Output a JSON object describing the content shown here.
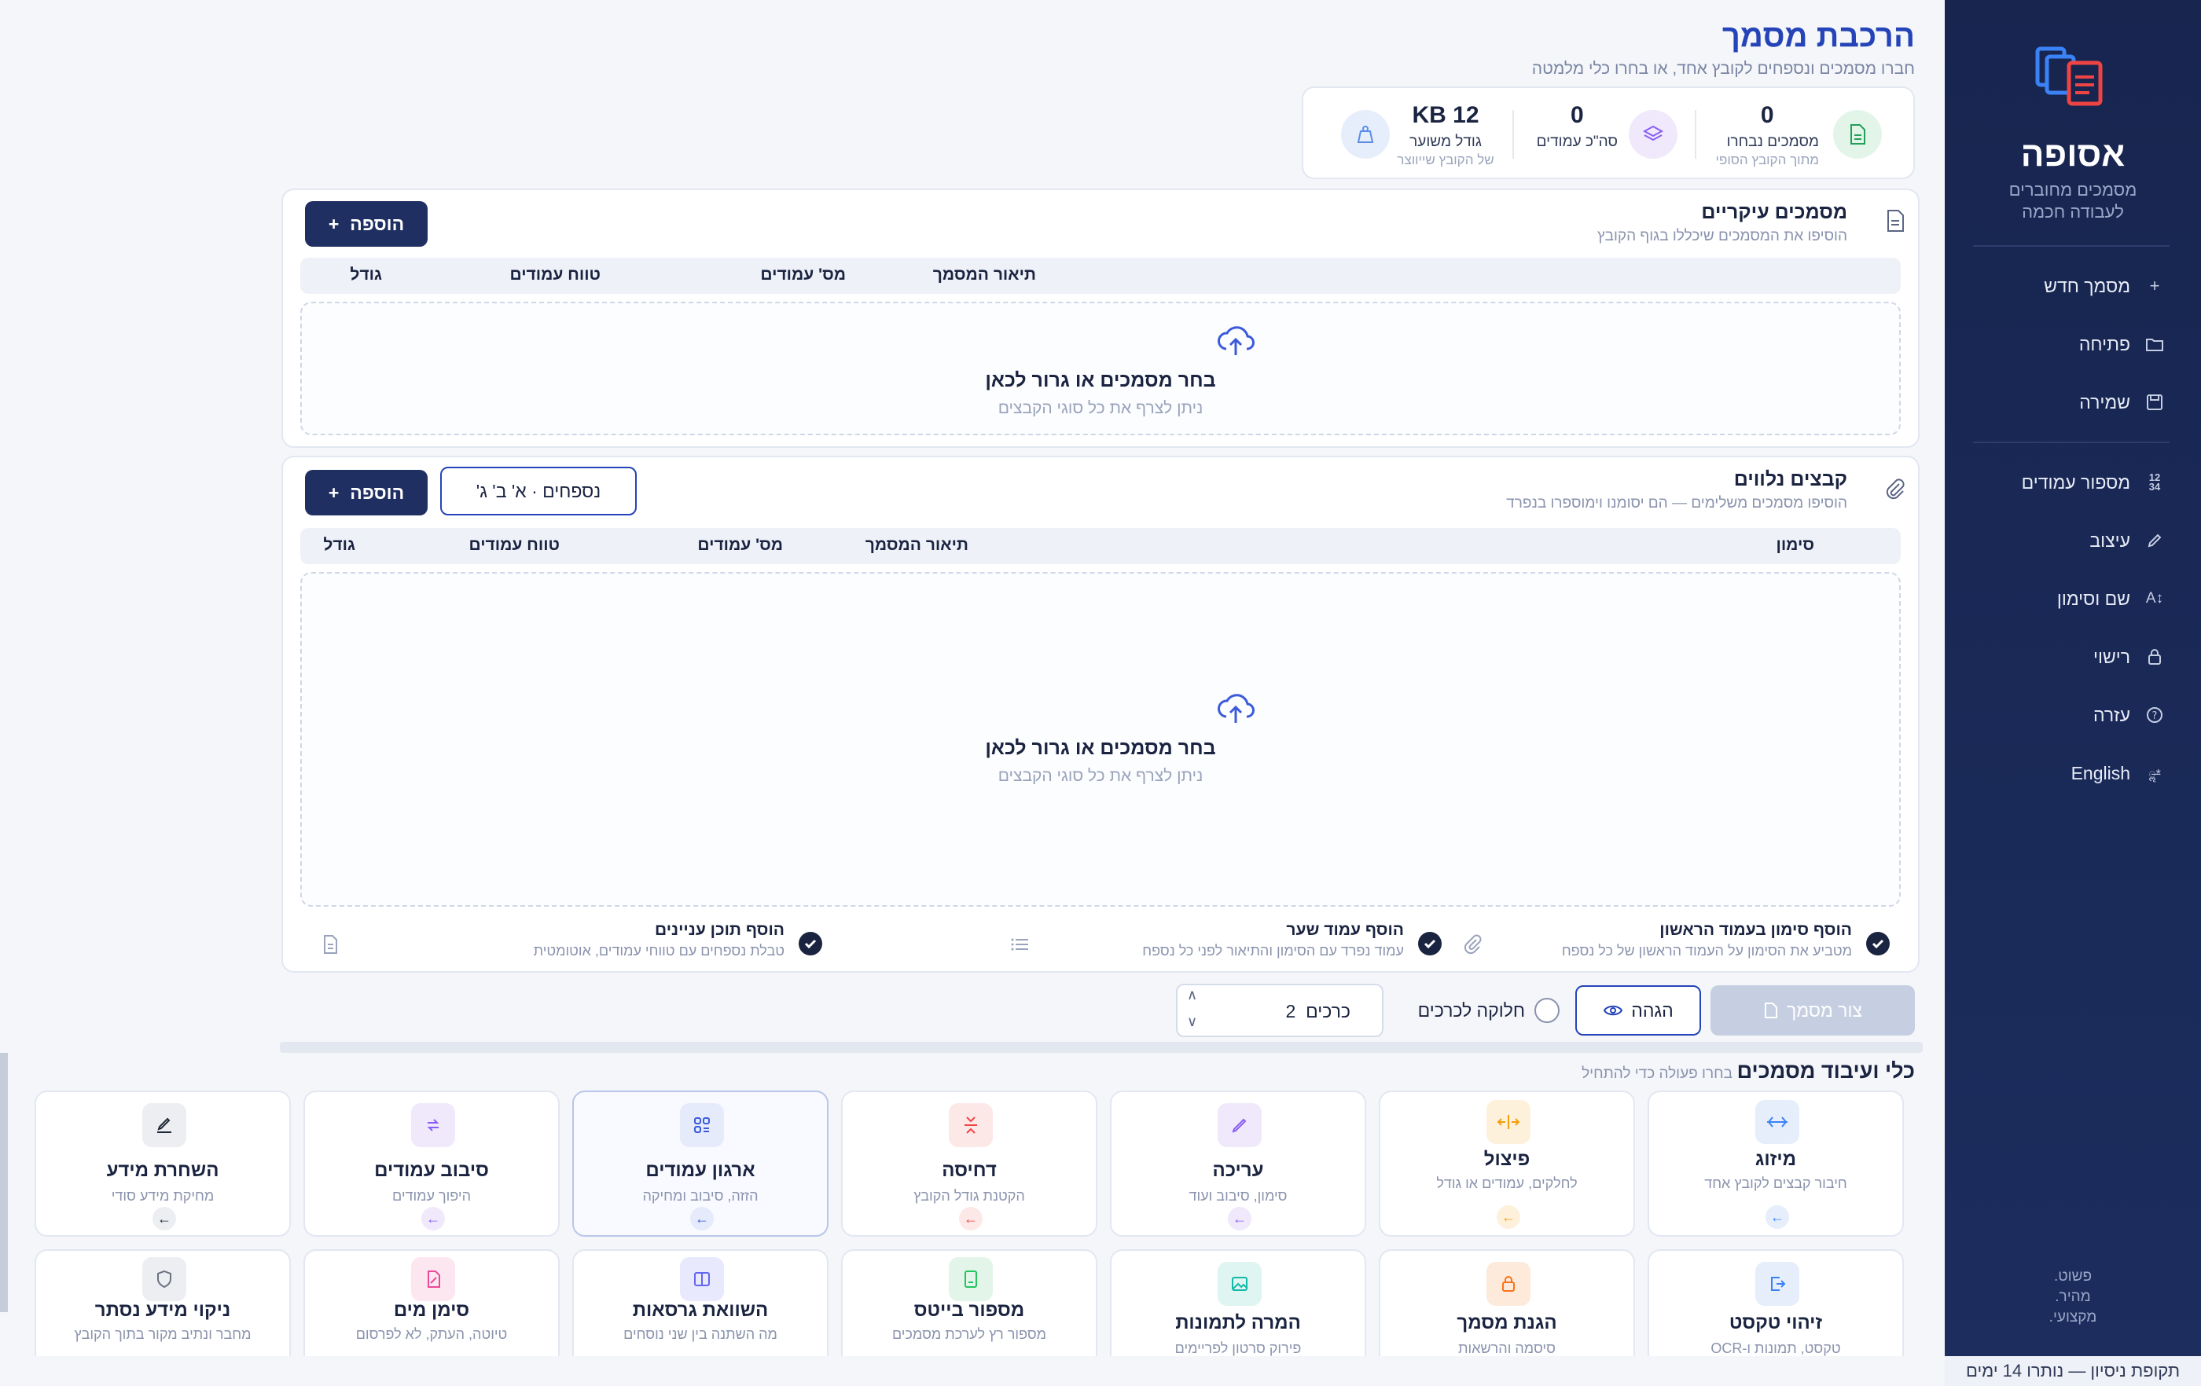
{
  "sidebar": {
    "brand": "אסופה",
    "tagline_1": "מסמכים מחוברים",
    "tagline_2": "לעבודה חכמה",
    "menu": [
      {
        "label": "מסמך חדש",
        "icon": "plus-icon"
      },
      {
        "label": "פתיחה",
        "icon": "folder-icon"
      },
      {
        "label": "שמירה",
        "icon": "save-icon"
      },
      {
        "label": "מספור עמודים",
        "icon": "numbering-icon"
      },
      {
        "label": "עיצוב",
        "icon": "brush-icon"
      },
      {
        "label": "שם וסימון",
        "icon": "text-size-icon"
      },
      {
        "label": "רישוי",
        "icon": "lock-icon"
      },
      {
        "label": "עזרה",
        "icon": "help-icon"
      },
      {
        "label": "English",
        "icon": "language-icon"
      }
    ],
    "footer_1": "פשוט.",
    "footer_2": "מהיר.",
    "footer_3": "מקצועי.",
    "trial": "תקופת ניסיון — נותרו 14 ימים"
  },
  "header": {
    "title": "הרכבת מסמך",
    "subtitle": "חברו מסמכים ונספחים לקובץ אחד, או בחרו כלי מלמטה"
  },
  "stats": {
    "selected": {
      "value": "0",
      "label": "מסמכים נבחרו",
      "sub": "מתוך הקובץ הסופי"
    },
    "pages": {
      "value": "0",
      "label": "סה\"כ עמודים"
    },
    "size": {
      "value": "12 KB",
      "label": "גודל משוער",
      "sub": "של הקובץ שייווצר"
    }
  },
  "main_docs": {
    "title": "מסמכים עיקריים",
    "subtitle": "הוסיפו את המסמכים שיכללו בגוף הקובץ",
    "add_label": "הוספה",
    "columns": [
      "תיאור המסמך",
      "מס' עמודים",
      "טווח עמודים",
      "גודל"
    ],
    "drop_title": "בחר מסמכים או גרור לכאן",
    "drop_sub": "ניתן לצרף את כל סוגי הקבצים"
  },
  "attachments": {
    "title": "קבצים נלווים",
    "subtitle": "הוסיפו מסמכים משלימים — הם יסומנו וימוספרו בנפרד",
    "add_label": "הוספה",
    "numbering_label": "נספחים · א' ב' ג'",
    "columns": [
      "סימון",
      "תיאור המסמך",
      "מס' עמודים",
      "טווח עמודים",
      "גודל"
    ],
    "drop_title": "בחר מסמכים או גרור לכאן",
    "drop_sub": "ניתן לצרף את כל סוגי הקבצים"
  },
  "options": [
    {
      "title": "הוסף סימון בעמוד הראשון",
      "sub": "מטביע את הסימון על העמוד הראשון של כל נספח"
    },
    {
      "title": "הוסף עמוד שער",
      "sub": "עמוד נפרד עם הסימון והתיאור לפני כל נספח"
    },
    {
      "title": "הוסף תוכן עניינים",
      "sub": "טבלת נספחים עם טווחי עמודים, אוטומטית"
    }
  ],
  "actions": {
    "build": "צור מסמך",
    "proof": "הגהה",
    "split": "חלוקה לכרכים",
    "volumes": "2",
    "volumes_unit": "כרכים"
  },
  "tools": {
    "title": "כלי ועיבוד מסמכים",
    "subtitle": "בחרו פעולה כדי להתחיל",
    "row1": [
      {
        "name": "מיזוג",
        "desc": "חיבור קבצים לקובץ אחד",
        "color": "#3b82f6"
      },
      {
        "name": "פיצול",
        "desc": "לחלקים, עמודים או גודל",
        "color": "#f59e0b"
      },
      {
        "name": "עריכה",
        "desc": "סימון, סיבוב ועוד",
        "color": "#8b5cf6"
      },
      {
        "name": "דחיסה",
        "desc": "הקטנת גודל הקובץ",
        "color": "#ef4444"
      },
      {
        "name": "ארגון עמודים",
        "desc": "הזזה, סיבוב ומחיקה",
        "color": "#3b5bdb"
      },
      {
        "name": "סיבוב עמודים",
        "desc": "היפוך עמודים",
        "color": "#8b5cf6"
      },
      {
        "name": "השחרת מידע",
        "desc": "מחיקת מידע סודי",
        "color": "#1f2937"
      }
    ],
    "row2": [
      {
        "name": "זיהוי טקסט",
        "desc": "טקסט, תמונות ו-OCR",
        "color": "#3b82f6"
      },
      {
        "name": "הגנת מסמך",
        "desc": "סיסמה והרשאות",
        "color": "#f97316"
      },
      {
        "name": "המרה לתמונות",
        "desc": "פירוק סרטון לפריימים",
        "color": "#14b8a6"
      },
      {
        "name": "מספור בייטס",
        "desc": "מספור רץ לערכת מסמכים",
        "color": "#22c55e"
      },
      {
        "name": "השוואת גרסאות",
        "desc": "מה השתנה בין שני נוסחים",
        "color": "#6366f1"
      },
      {
        "name": "סימן מים",
        "desc": "טיוטה, העתק, לא לפרסום",
        "color": "#ec4899"
      },
      {
        "name": "ניקוי מידע נסתר",
        "desc": "מחבר ונתיב מקור בתוך הקובץ",
        "color": "#6b7280"
      }
    ]
  }
}
